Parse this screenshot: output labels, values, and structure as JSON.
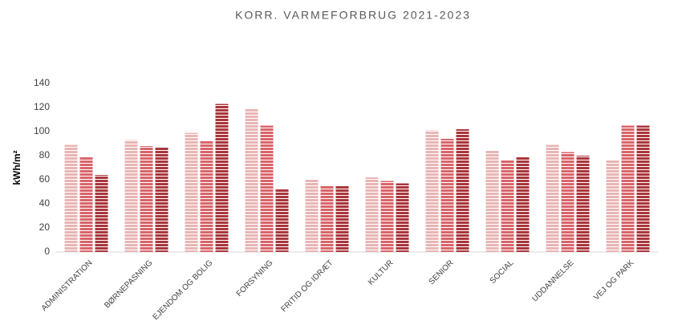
{
  "chart_data": {
    "type": "bar",
    "title": "KORR. VARMEFORBRUG 2021-2023",
    "y_label": "kWh/m²",
    "categories": [
      "ADMINISTRATION",
      "BØRNEPASNING",
      "EJENDOM OG BOLIG",
      "FORSYNING",
      "FRITID OG IDRÆT",
      "KULTUR",
      "SENIOR",
      "SOCIAL",
      "UDDANNELSE",
      "VEJ OG PARK"
    ],
    "series": [
      {
        "color": "#e9b5b5",
        "values": [
          89,
          93,
          99,
          119,
          60,
          62,
          101,
          84,
          89,
          76
        ]
      },
      {
        "color": "#d8656a",
        "values": [
          79,
          88,
          92,
          105,
          55,
          59,
          94,
          76,
          83,
          105
        ]
      },
      {
        "color": "#a9363c",
        "values": [
          64,
          87,
          123,
          52,
          55,
          57,
          102,
          79,
          80,
          105
        ]
      }
    ],
    "ylim": [
      0,
      140
    ],
    "yticks": [
      0,
      20,
      40,
      60,
      80,
      100,
      120,
      140
    ],
    "grid": false
  }
}
